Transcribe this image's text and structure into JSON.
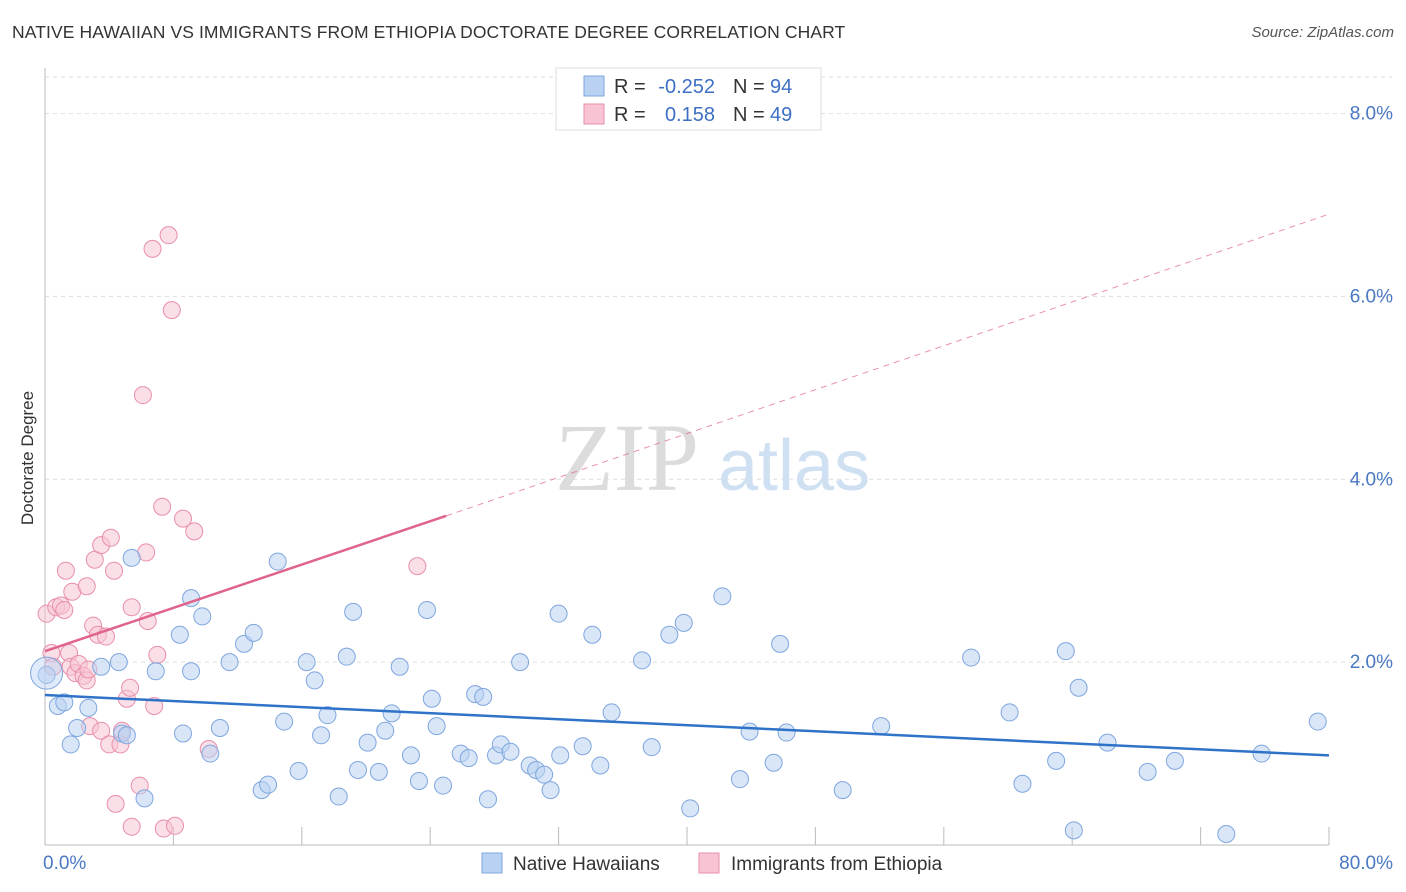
{
  "title": "NATIVE HAWAIIAN VS IMMIGRANTS FROM ETHIOPIA DOCTORATE DEGREE CORRELATION CHART",
  "source": "Source: ZipAtlas.com",
  "watermark": {
    "zip": "ZIP",
    "atlas": "atlas"
  },
  "legend_top": [
    {
      "r_label": "R =",
      "r_value": "-0.252",
      "n_label": "N =",
      "n_value": "94"
    },
    {
      "r_label": "R =",
      "r_value": "0.158",
      "n_label": "N =",
      "n_value": "49"
    }
  ],
  "legend_bottom": [
    "Native Hawaiians",
    "Immigrants from Ethiopia"
  ],
  "colors": {
    "blue_fill": "#b9d2f3",
    "blue_stroke": "#7ea6de",
    "blue_line": "#2f73c9",
    "pink_fill": "#f8c4d4",
    "pink_stroke": "#e88fab",
    "pink_line": "#e0638c",
    "grid": "#dddddd",
    "axis": "#bbbbbb"
  },
  "chart_data": {
    "type": "scatter",
    "title": "NATIVE HAWAIIAN VS IMMIGRANTS FROM ETHIOPIA DOCTORATE DEGREE CORRELATION CHART",
    "xlabel": "",
    "ylabel": "Doctorate Degree",
    "xlim": [
      0,
      80
    ],
    "ylim": [
      0,
      8.4
    ],
    "x_tick_labels": [
      "0.0%",
      "80.0%"
    ],
    "y_ticks": [
      2,
      4,
      6,
      8
    ],
    "y_tick_labels": [
      "2.0%",
      "4.0%",
      "6.0%",
      "8.0%"
    ],
    "grid": true,
    "legend_position": "top-center",
    "series": [
      {
        "name": "Native Hawaiians",
        "r": -0.252,
        "n": 94,
        "trend": {
          "x": [
            0,
            80
          ],
          "y": [
            1.64,
            0.98
          ]
        },
        "points": [
          [
            0.1,
            1.86
          ],
          [
            0.8,
            1.52
          ],
          [
            1.2,
            1.56
          ],
          [
            1.6,
            1.1
          ],
          [
            2,
            1.28
          ],
          [
            2.7,
            1.5
          ],
          [
            3.5,
            1.95
          ],
          [
            4.6,
            2.0
          ],
          [
            4.8,
            1.22
          ],
          [
            5.1,
            1.2
          ],
          [
            5.4,
            3.14
          ],
          [
            6.2,
            0.51
          ],
          [
            6.9,
            1.9
          ],
          [
            8.4,
            2.3
          ],
          [
            8.6,
            1.22
          ],
          [
            9.1,
            2.7
          ],
          [
            9.1,
            1.9
          ],
          [
            9.8,
            2.5
          ],
          [
            10.3,
            1.0
          ],
          [
            10.9,
            1.28
          ],
          [
            11.5,
            2.0
          ],
          [
            12.4,
            2.2
          ],
          [
            13,
            2.32
          ],
          [
            13.5,
            0.6
          ],
          [
            13.9,
            0.66
          ],
          [
            14.5,
            3.1
          ],
          [
            14.9,
            1.35
          ],
          [
            15.8,
            0.81
          ],
          [
            16.3,
            2.0
          ],
          [
            16.8,
            1.8
          ],
          [
            17.2,
            1.2
          ],
          [
            17.6,
            1.42
          ],
          [
            18.3,
            0.53
          ],
          [
            18.8,
            2.06
          ],
          [
            19.2,
            2.55
          ],
          [
            19.5,
            0.82
          ],
          [
            20.1,
            1.12
          ],
          [
            20.8,
            0.8
          ],
          [
            21.2,
            1.25
          ],
          [
            21.6,
            1.44
          ],
          [
            22.1,
            1.95
          ],
          [
            22.8,
            0.98
          ],
          [
            23.3,
            0.7
          ],
          [
            23.8,
            2.57
          ],
          [
            24.1,
            1.6
          ],
          [
            24.4,
            1.3
          ],
          [
            24.8,
            0.65
          ],
          [
            25.9,
            1.0
          ],
          [
            26.4,
            0.95
          ],
          [
            26.8,
            1.65
          ],
          [
            27.3,
            1.62
          ],
          [
            27.6,
            0.5
          ],
          [
            28.1,
            0.98
          ],
          [
            28.4,
            1.1
          ],
          [
            29,
            1.02
          ],
          [
            29.6,
            2.0
          ],
          [
            30.2,
            0.87
          ],
          [
            30.6,
            0.82
          ],
          [
            31.1,
            0.77
          ],
          [
            31.5,
            0.6
          ],
          [
            32,
            2.53
          ],
          [
            32.1,
            0.98
          ],
          [
            33.5,
            1.08
          ],
          [
            34.1,
            2.3
          ],
          [
            34.6,
            0.87
          ],
          [
            35.3,
            1.45
          ],
          [
            37.2,
            2.02
          ],
          [
            37.8,
            1.07
          ],
          [
            38.9,
            2.3
          ],
          [
            39.8,
            2.43
          ],
          [
            40.2,
            0.4
          ],
          [
            42.2,
            2.72
          ],
          [
            43.3,
            0.72
          ],
          [
            43.9,
            1.24
          ],
          [
            45.4,
            0.9
          ],
          [
            45.8,
            2.2
          ],
          [
            46.2,
            1.23
          ],
          [
            49.7,
            0.6
          ],
          [
            52.1,
            1.3
          ],
          [
            57.7,
            2.05
          ],
          [
            60.1,
            1.45
          ],
          [
            60.9,
            0.67
          ],
          [
            63,
            0.92
          ],
          [
            63.6,
            2.12
          ],
          [
            64.1,
            0.16
          ],
          [
            64.4,
            1.72
          ],
          [
            66.2,
            1.12
          ],
          [
            68.7,
            0.8
          ],
          [
            70.4,
            0.92
          ],
          [
            73.6,
            0.12
          ],
          [
            75.8,
            1.0
          ],
          [
            79.3,
            1.35
          ]
        ]
      },
      {
        "name": "Immigrants from Ethiopia",
        "r": 0.158,
        "n": 49,
        "trend": {
          "x": [
            0,
            25
          ],
          "y": [
            2.12,
            3.6
          ],
          "dashed_to": {
            "x": 80,
            "y": 6.9
          }
        },
        "points": [
          [
            0.1,
            2.53
          ],
          [
            0.4,
            2.1
          ],
          [
            0.5,
            1.95
          ],
          [
            0.7,
            2.6
          ],
          [
            1.0,
            2.62
          ],
          [
            1.2,
            2.57
          ],
          [
            1.5,
            2.1
          ],
          [
            1.3,
            3.0
          ],
          [
            1.7,
            2.77
          ],
          [
            1.6,
            1.95
          ],
          [
            1.9,
            1.88
          ],
          [
            2.1,
            1.98
          ],
          [
            2.4,
            1.85
          ],
          [
            2.6,
            1.8
          ],
          [
            2.6,
            2.83
          ],
          [
            2.7,
            1.92
          ],
          [
            2.8,
            1.3
          ],
          [
            3.0,
            2.4
          ],
          [
            3.1,
            3.12
          ],
          [
            3.3,
            2.3
          ],
          [
            3.5,
            1.25
          ],
          [
            3.5,
            3.28
          ],
          [
            3.8,
            2.28
          ],
          [
            4.0,
            1.1
          ],
          [
            4.1,
            3.36
          ],
          [
            4.3,
            3.0
          ],
          [
            4.4,
            0.45
          ],
          [
            4.7,
            1.1
          ],
          [
            4.8,
            1.25
          ],
          [
            5.1,
            1.6
          ],
          [
            5.3,
            1.72
          ],
          [
            5.4,
            2.6
          ],
          [
            5.4,
            0.2
          ],
          [
            5.9,
            0.65
          ],
          [
            6.1,
            4.92
          ],
          [
            6.3,
            3.2
          ],
          [
            6.4,
            2.45
          ],
          [
            6.7,
            6.52
          ],
          [
            6.8,
            1.52
          ],
          [
            7.0,
            2.08
          ],
          [
            7.3,
            3.7
          ],
          [
            7.4,
            0.18
          ],
          [
            7.7,
            6.67
          ],
          [
            7.9,
            5.85
          ],
          [
            8.1,
            0.21
          ],
          [
            8.6,
            3.57
          ],
          [
            9.3,
            3.43
          ],
          [
            10.2,
            1.05
          ],
          [
            23.2,
            3.05
          ]
        ]
      }
    ]
  }
}
